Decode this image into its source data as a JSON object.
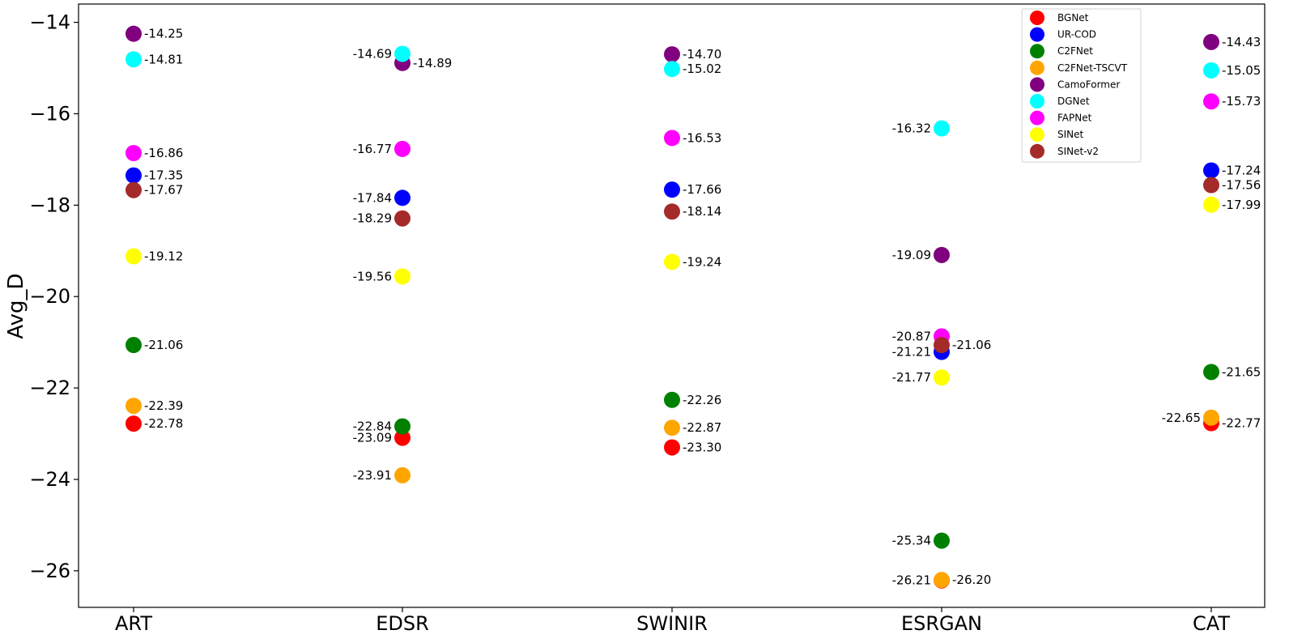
{
  "chart_data": {
    "type": "scatter",
    "ylabel": "Avg_D",
    "xlabel": "",
    "title": "",
    "categories": [
      "ART",
      "EDSR",
      "SWINIR",
      "ESRGAN",
      "CAT"
    ],
    "yticks": [
      "−14",
      "−16",
      "−18",
      "−20",
      "−22",
      "−24",
      "−26"
    ],
    "ytick_values": [
      -14,
      -16,
      -18,
      -20,
      -22,
      -24,
      -26
    ],
    "ylim": [
      -26.8,
      -13.6
    ],
    "grid": false,
    "legend_position": "top-right",
    "series": [
      {
        "name": "BGNet",
        "color": "#ff0000",
        "values": [
          -22.78,
          -23.09,
          -23.3,
          -26.21,
          -22.77
        ],
        "labels": [
          "-22.78",
          "-23.09",
          "-23.30",
          "-26.21",
          "-22.77"
        ],
        "label_side": [
          "right",
          "left",
          "right",
          "left",
          "right"
        ]
      },
      {
        "name": "UR-COD",
        "color": "#0000ff",
        "values": [
          -17.35,
          -17.84,
          -17.66,
          -21.21,
          -17.24
        ],
        "labels": [
          "-17.35",
          "-17.84",
          "-17.66",
          "-21.21",
          "-17.24"
        ],
        "label_side": [
          "right",
          "left",
          "right",
          "left",
          "right"
        ]
      },
      {
        "name": "C2FNet",
        "color": "#008000",
        "values": [
          -21.06,
          -22.84,
          -22.26,
          -25.34,
          -21.65
        ],
        "labels": [
          "-21.06",
          "-22.84",
          "-22.26",
          "-25.34",
          "-21.65"
        ],
        "label_side": [
          "right",
          "left",
          "right",
          "left",
          "right"
        ]
      },
      {
        "name": "C2FNet-TSCVT",
        "color": "#ffa500",
        "values": [
          -22.39,
          -23.91,
          -22.87,
          -26.2,
          -22.65
        ],
        "labels": [
          "-22.39",
          "-23.91",
          "-22.87",
          "-26.20",
          "-22.65"
        ],
        "label_side": [
          "right",
          "left",
          "right",
          "right",
          "left"
        ]
      },
      {
        "name": "CamoFormer",
        "color": "#800080",
        "values": [
          -14.25,
          -14.89,
          -14.7,
          -19.09,
          -14.43
        ],
        "labels": [
          "-14.25",
          "-14.89",
          "-14.70",
          "-19.09",
          "-14.43"
        ],
        "label_side": [
          "right",
          "right",
          "right",
          "left",
          "right"
        ]
      },
      {
        "name": "DGNet",
        "color": "#00ffff",
        "values": [
          -14.81,
          -14.69,
          -15.02,
          -16.32,
          -15.05
        ],
        "labels": [
          "-14.81",
          "-14.69",
          "-15.02",
          "-16.32",
          "-15.05"
        ],
        "label_side": [
          "right",
          "left",
          "right",
          "left",
          "right"
        ]
      },
      {
        "name": "FAPNet",
        "color": "#ff00ff",
        "values": [
          -16.86,
          -16.77,
          -16.53,
          -20.87,
          -15.73
        ],
        "labels": [
          "-16.86",
          "-16.77",
          "-16.53",
          "-20.87",
          "-15.73"
        ],
        "label_side": [
          "right",
          "left",
          "right",
          "left",
          "right"
        ]
      },
      {
        "name": "SINet",
        "color": "#ffff00",
        "values": [
          -19.12,
          -19.56,
          -19.24,
          -21.77,
          -17.99
        ],
        "labels": [
          "-19.12",
          "-19.56",
          "-19.24",
          "-21.77",
          "-17.99"
        ],
        "label_side": [
          "right",
          "left",
          "right",
          "left",
          "right"
        ]
      },
      {
        "name": "SINet-v2",
        "color": "#a52a2a",
        "values": [
          -17.67,
          -18.29,
          -18.14,
          -21.06,
          -17.56
        ],
        "labels": [
          "-17.67",
          "-18.29",
          "-18.14",
          "-21.06",
          "-17.56"
        ],
        "label_side": [
          "right",
          "left",
          "right",
          "right",
          "right"
        ]
      }
    ]
  }
}
